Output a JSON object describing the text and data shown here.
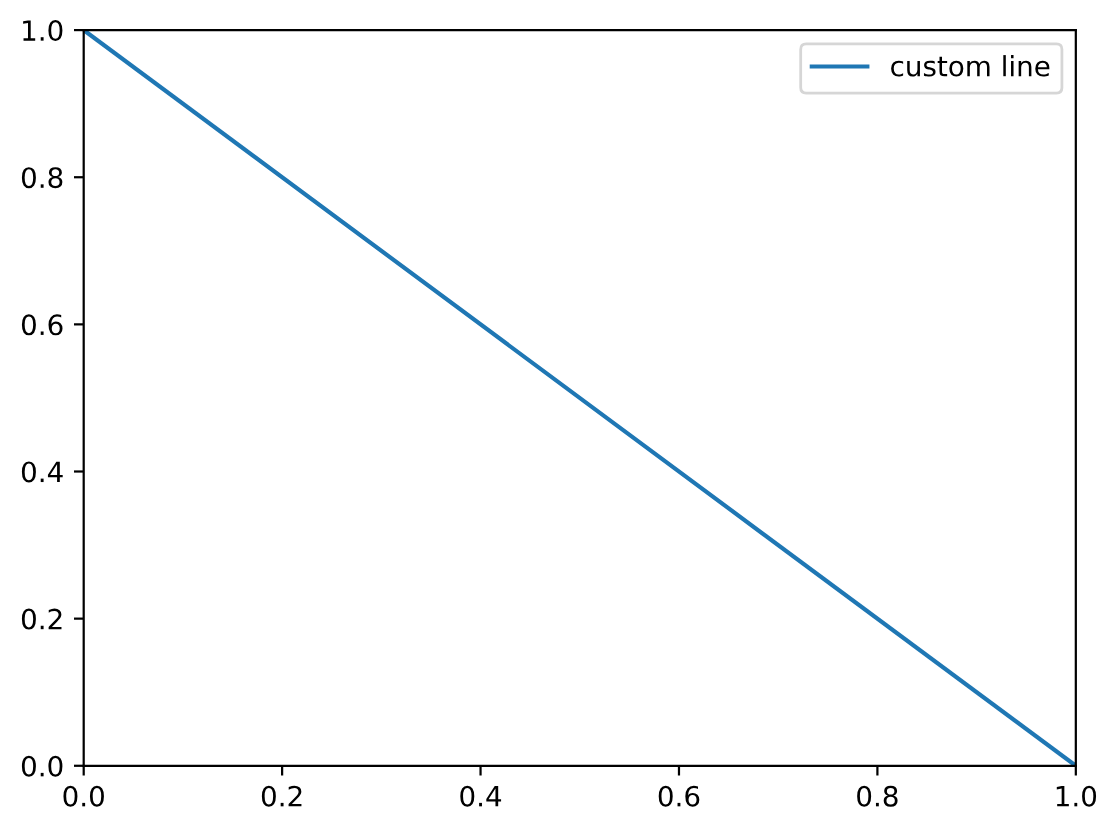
{
  "chart_data": {
    "type": "line",
    "x": [
      0,
      1
    ],
    "series": [
      {
        "name": "custom line",
        "color": "#1f77b4",
        "values": [
          1,
          0
        ]
      }
    ],
    "xlim": [
      0,
      1
    ],
    "ylim": [
      0,
      1
    ],
    "xticks": [
      {
        "value": 0,
        "label": "0.0"
      },
      {
        "value": 0.2,
        "label": "0.2"
      },
      {
        "value": 0.4,
        "label": "0.4"
      },
      {
        "value": 0.6,
        "label": "0.6"
      },
      {
        "value": 0.8,
        "label": "0.8"
      },
      {
        "value": 1,
        "label": "1.0"
      }
    ],
    "yticks": [
      {
        "value": 0,
        "label": "0.0"
      },
      {
        "value": 0.2,
        "label": "0.2"
      },
      {
        "value": 0.4,
        "label": "0.4"
      },
      {
        "value": 0.6,
        "label": "0.6"
      },
      {
        "value": 0.8,
        "label": "0.8"
      },
      {
        "value": 1,
        "label": "1.0"
      }
    ],
    "legend": "top right",
    "grid": false
  }
}
